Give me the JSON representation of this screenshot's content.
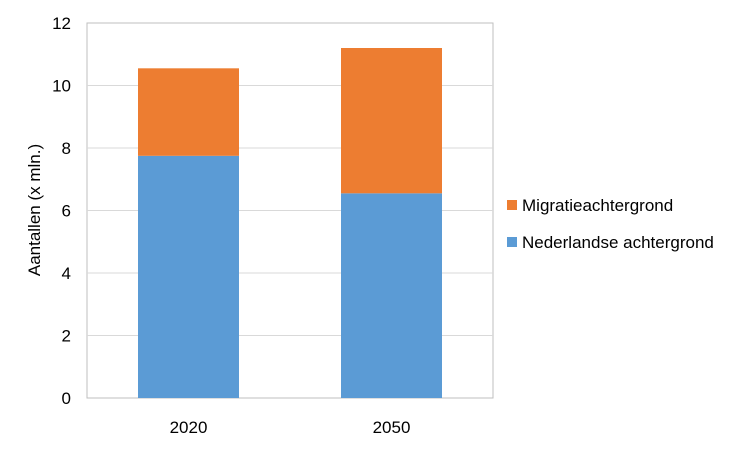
{
  "chart_data": {
    "type": "bar",
    "stacked": true,
    "categories": [
      "2020",
      "2050"
    ],
    "series": [
      {
        "name": "Nederlandse achtergrond",
        "values": [
          7.75,
          6.55
        ],
        "color": "#5B9BD5"
      },
      {
        "name": "Migratieachtergrond",
        "values": [
          2.8,
          4.65
        ],
        "color": "#ED7D31"
      }
    ],
    "legend_order": [
      "Migratieachtergrond",
      "Nederlandse achtergrond"
    ],
    "ylabel": "Aantallen (x mln.)",
    "xlabel": "",
    "ylim": [
      0,
      12
    ],
    "yticks": [
      "0",
      "2",
      "4",
      "6",
      "8",
      "10",
      "12"
    ],
    "grid": true,
    "legend_position": "right"
  }
}
